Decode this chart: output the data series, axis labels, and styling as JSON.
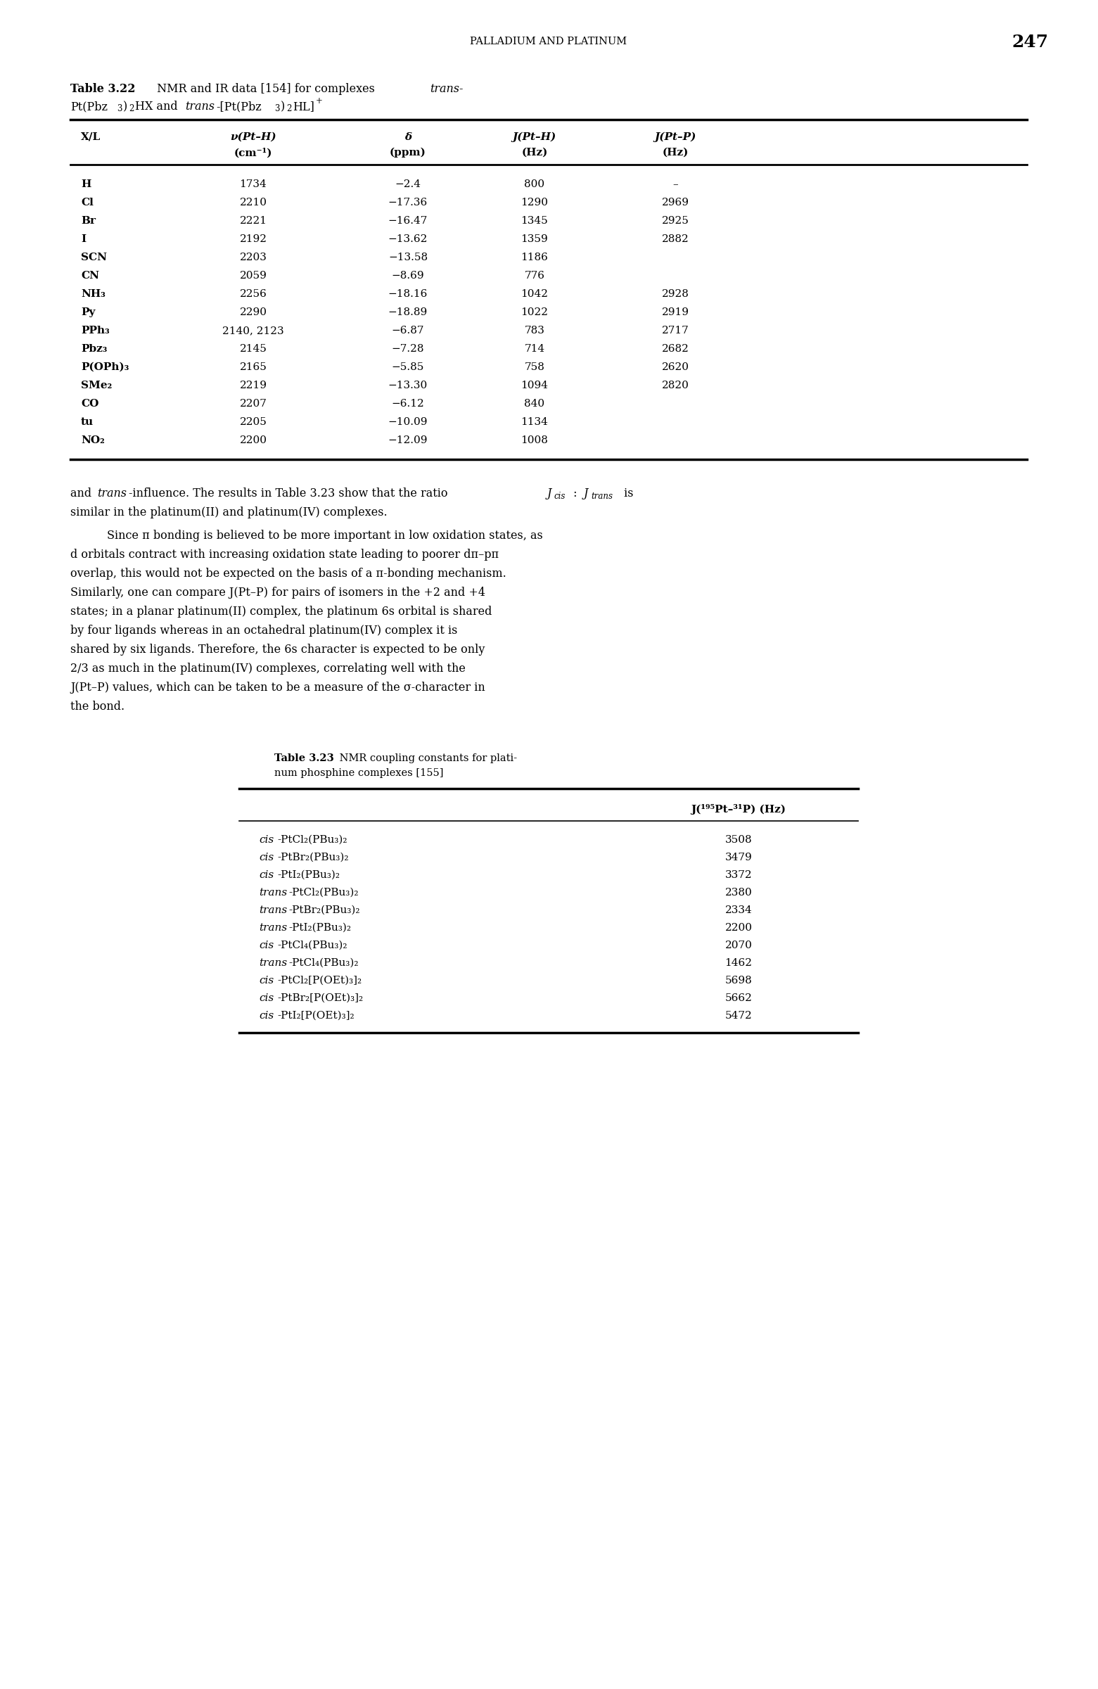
{
  "page_header": "PALLADIUM AND PLATINUM",
  "page_number": "247",
  "table22_rows": [
    [
      "H",
      "1734",
      "−2.4",
      "800",
      "–"
    ],
    [
      "Cl",
      "2210",
      "−17.36",
      "1290",
      "2969"
    ],
    [
      "Br",
      "2221",
      "−16.47",
      "1345",
      "2925"
    ],
    [
      "I",
      "2192",
      "−13.62",
      "1359",
      "2882"
    ],
    [
      "SCN",
      "2203",
      "−13.58",
      "1186",
      ""
    ],
    [
      "CN",
      "2059",
      "−8.69",
      "776",
      ""
    ],
    [
      "NH₃",
      "2256",
      "−18.16",
      "1042",
      "2928"
    ],
    [
      "Py",
      "2290",
      "−18.89",
      "1022",
      "2919"
    ],
    [
      "PPh₃",
      "2140, 2123",
      "−6.87",
      "783",
      "2717"
    ],
    [
      "Pbz₃",
      "2145",
      "−7.28",
      "714",
      "2682"
    ],
    [
      "P(OPh)₃",
      "2165",
      "−5.85",
      "758",
      "2620"
    ],
    [
      "SMe₂",
      "2219",
      "−13.30",
      "1094",
      "2820"
    ],
    [
      "CO",
      "2207",
      "−6.12",
      "840",
      ""
    ],
    [
      "tu",
      "2205",
      "−10.09",
      "1134",
      ""
    ],
    [
      "NO₂",
      "2200",
      "−12.09",
      "1008",
      ""
    ]
  ],
  "para2_lines": [
    "Since π bonding is believed to be more important in low oxidation states, as",
    "d orbitals contract with increasing oxidation state leading to poorer dπ–pπ",
    "overlap, this would not be expected on the basis of a π-bonding mechanism.",
    "Similarly, one can compare J(Pt–P) for pairs of isomers in the +2 and +4",
    "states; in a planar platinum(II) complex, the platinum 6s orbital is shared",
    "by four ligands whereas in an octahedral platinum(IV) complex it is",
    "shared by six ligands. Therefore, the 6s character is expected to be only",
    "2/3 as much in the platinum(IV) complexes, correlating well with the",
    "J(Pt–P) values, which can be taken to be a measure of the σ-character in",
    "the bond."
  ],
  "table23_rows": [
    [
      "cis-PtCl₂(PBu₃)₂",
      "3508"
    ],
    [
      "cis-PtBr₂(PBu₃)₂",
      "3479"
    ],
    [
      "cis-PtI₂(PBu₃)₂",
      "3372"
    ],
    [
      "trans-PtCl₂(PBu₃)₂",
      "2380"
    ],
    [
      "trans-PtBr₂(PBu₃)₂",
      "2334"
    ],
    [
      "trans-PtI₂(PBu₃)₂",
      "2200"
    ],
    [
      "cis-PtCl₄(PBu₃)₂",
      "2070"
    ],
    [
      "trans-PtCl₄(PBu₃)₂",
      "1462"
    ],
    [
      "cis-PtCl₂[P(OEt)₃]₂",
      "5698"
    ],
    [
      "cis-PtBr₂[P(OEt)₃]₂",
      "5662"
    ],
    [
      "cis-PtI₂[P(OEt)₃]₂",
      "5472"
    ]
  ],
  "background_color": "#ffffff"
}
